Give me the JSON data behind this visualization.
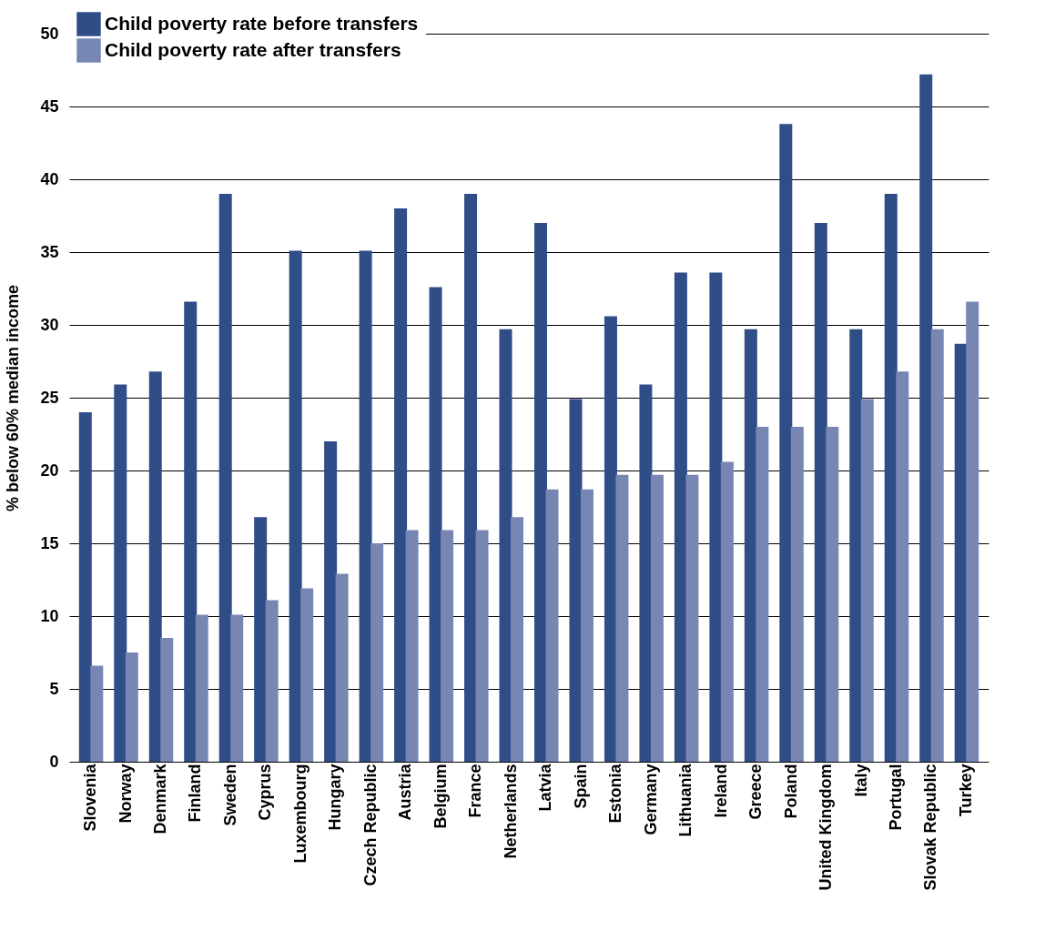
{
  "chart_data": {
    "type": "bar",
    "ylabel": "% below 60% median income",
    "categories": [
      "Slovenia",
      "Norway",
      "Denmark",
      "Finland",
      "Sweden",
      "Cyprus",
      "Luxembourg",
      "Hungary",
      "Czech Republic",
      "Austria",
      "Belgium",
      "France",
      "Netherlands",
      "Latvia",
      "Spain",
      "Estonia",
      "Germany",
      "Lithuania",
      "Ireland",
      "Greece",
      "Poland",
      "United Kingdom",
      "Italy",
      "Portugal",
      "Slovak Republic",
      "Turkey"
    ],
    "series": [
      {
        "name": "Child poverty rate before transfers",
        "color": "#2f4d87",
        "values": [
          24,
          25.9,
          26.8,
          31.6,
          39,
          16.8,
          35.1,
          22,
          35.1,
          38,
          32.6,
          39,
          29.7,
          37,
          24.9,
          30.6,
          25.9,
          33.6,
          33.6,
          29.7,
          43.8,
          37,
          29.7,
          39,
          47.2,
          28.7
        ]
      },
      {
        "name": "Child poverty rate after transfers",
        "color": "#7886b3",
        "values": [
          6.6,
          7.5,
          8.5,
          10.1,
          10.1,
          11.1,
          11.9,
          12.9,
          15,
          15.9,
          15.9,
          15.9,
          16.8,
          18.7,
          18.7,
          19.7,
          19.7,
          19.7,
          20.6,
          23,
          23,
          23,
          24.9,
          26.8,
          29.7,
          31.6
        ]
      }
    ],
    "ylim": [
      0,
      50
    ],
    "yticks": [
      0,
      5,
      10,
      15,
      20,
      25,
      30,
      35,
      40,
      45,
      50
    ],
    "grid": "y",
    "legend": "top"
  }
}
